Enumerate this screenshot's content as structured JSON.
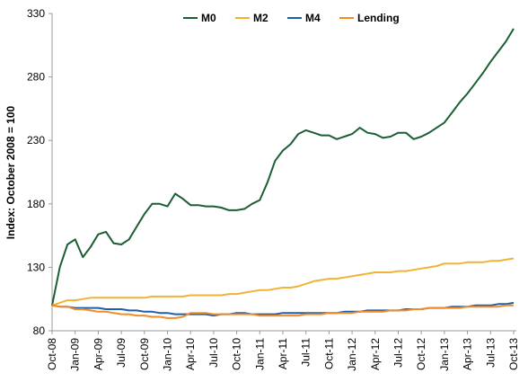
{
  "chart_data": {
    "type": "line",
    "title": "",
    "xlabel": "",
    "ylabel": "Index: October 2008 = 100",
    "ylim": [
      80,
      330
    ],
    "yticks": [
      80,
      130,
      180,
      230,
      280,
      330
    ],
    "grid": false,
    "legend_position": "top",
    "x_tick_labels": [
      "Oct-08",
      "Jan-09",
      "Apr-09",
      "Jul-09",
      "Oct-09",
      "Jan-10",
      "Apr-10",
      "Jul-10",
      "Oct-10",
      "Jan-11",
      "Apr-11",
      "Jul-11",
      "Oct-11",
      "Jan-12",
      "Apr-12",
      "Jul-12",
      "Oct-12",
      "Jan-13",
      "Apr-13",
      "Jul-13",
      "Oct-13"
    ],
    "x": [
      "Oct-08",
      "Nov-08",
      "Dec-08",
      "Jan-09",
      "Feb-09",
      "Mar-09",
      "Apr-09",
      "May-09",
      "Jun-09",
      "Jul-09",
      "Aug-09",
      "Sep-09",
      "Oct-09",
      "Nov-09",
      "Dec-09",
      "Jan-10",
      "Feb-10",
      "Mar-10",
      "Apr-10",
      "May-10",
      "Jun-10",
      "Jul-10",
      "Aug-10",
      "Sep-10",
      "Oct-10",
      "Nov-10",
      "Dec-10",
      "Jan-11",
      "Feb-11",
      "Mar-11",
      "Apr-11",
      "May-11",
      "Jun-11",
      "Jul-11",
      "Aug-11",
      "Sep-11",
      "Oct-11",
      "Nov-11",
      "Dec-11",
      "Jan-12",
      "Feb-12",
      "Mar-12",
      "Apr-12",
      "May-12",
      "Jun-12",
      "Jul-12",
      "Aug-12",
      "Sep-12",
      "Oct-12",
      "Nov-12",
      "Dec-12",
      "Jan-13",
      "Feb-13",
      "Mar-13",
      "Apr-13",
      "May-13",
      "Jun-13",
      "Jul-13",
      "Aug-13",
      "Sep-13",
      "Oct-13"
    ],
    "series": [
      {
        "name": "M0",
        "color": "#1a5e33",
        "values": [
          100,
          130,
          148,
          152,
          138,
          146,
          156,
          158,
          149,
          148,
          152,
          162,
          172,
          180,
          180,
          178,
          188,
          184,
          179,
          179,
          178,
          178,
          177,
          175,
          175,
          176,
          180,
          183,
          197,
          214,
          222,
          227,
          235,
          238,
          236,
          234,
          234,
          231,
          233,
          235,
          240,
          236,
          235,
          232,
          233,
          236,
          236,
          231,
          233,
          236,
          240,
          244,
          252,
          260,
          267,
          275,
          283,
          292,
          300,
          308,
          318
        ]
      },
      {
        "name": "M2",
        "color": "#f0b335",
        "values": [
          100,
          102,
          104,
          104,
          105,
          106,
          106,
          106,
          106,
          106,
          106,
          106,
          106,
          107,
          107,
          107,
          107,
          107,
          108,
          108,
          108,
          108,
          108,
          109,
          109,
          110,
          111,
          112,
          112,
          113,
          114,
          114,
          115,
          117,
          119,
          120,
          121,
          121,
          122,
          123,
          124,
          125,
          126,
          126,
          126,
          127,
          127,
          128,
          129,
          130,
          131,
          133,
          133,
          133,
          134,
          134,
          134,
          135,
          135,
          136,
          137
        ]
      },
      {
        "name": "M4",
        "color": "#1f5ea8",
        "values": [
          100,
          99,
          99,
          98,
          98,
          98,
          98,
          97,
          97,
          97,
          96,
          96,
          95,
          95,
          94,
          94,
          93,
          93,
          93,
          93,
          93,
          92,
          93,
          93,
          94,
          94,
          93,
          93,
          93,
          93,
          94,
          94,
          94,
          94,
          94,
          94,
          94,
          94,
          95,
          95,
          95,
          96,
          96,
          96,
          96,
          96,
          97,
          97,
          97,
          98,
          98,
          98,
          99,
          99,
          99,
          100,
          100,
          100,
          101,
          101,
          102
        ]
      },
      {
        "name": "Lending",
        "color": "#f28c28",
        "values": [
          100,
          99,
          99,
          97,
          97,
          96,
          95,
          95,
          94,
          93,
          93,
          92,
          92,
          91,
          91,
          90,
          90,
          91,
          94,
          94,
          94,
          93,
          93,
          93,
          93,
          93,
          93,
          92,
          92,
          92,
          92,
          92,
          92,
          93,
          93,
          93,
          94,
          94,
          94,
          94,
          95,
          95,
          95,
          95,
          96,
          96,
          96,
          97,
          97,
          98,
          98,
          98,
          98,
          98,
          99,
          99,
          99,
          99,
          99,
          100,
          100
        ]
      }
    ]
  }
}
